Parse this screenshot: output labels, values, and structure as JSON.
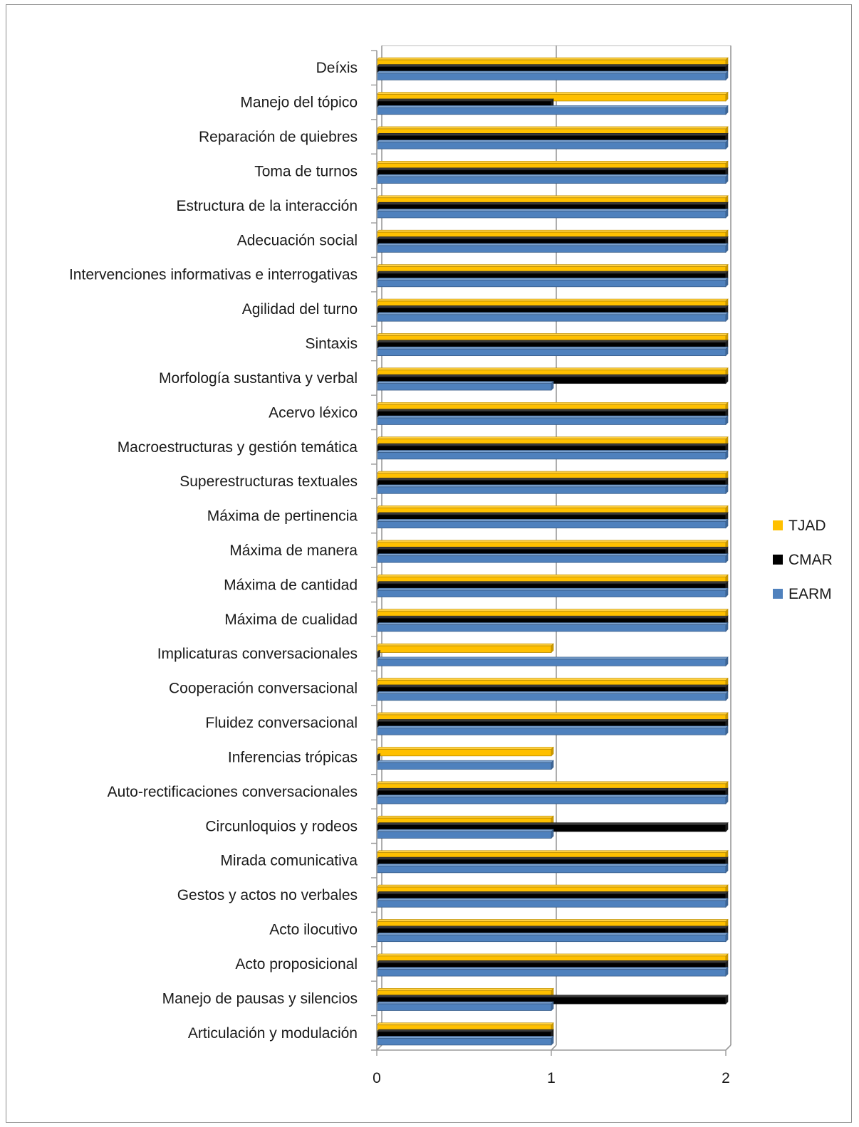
{
  "chart_data": {
    "type": "bar",
    "orientation": "horizontal",
    "title": "",
    "xlabel": "",
    "ylabel": "",
    "xlim": [
      0,
      2
    ],
    "x_ticks": [
      "0",
      "1",
      "2"
    ],
    "grid": "vertical major gridlines",
    "legend_position": "right",
    "categories": [
      "Deíxis",
      "Manejo del tópico",
      "Reparación de quiebres",
      "Toma de turnos",
      "Estructura de la interacción",
      "Adecuación social",
      "Intervenciones informativas e interrogativas",
      "Agilidad del turno",
      "Sintaxis",
      "Morfología sustantiva y verbal",
      "Acervo léxico",
      "Macroestructuras y gestión temática",
      "Superestructuras textuales",
      "Máxima de pertinencia",
      "Máxima de manera",
      "Máxima de cantidad",
      "Máxima de cualidad",
      "Implicaturas conversacionales",
      "Cooperación conversacional",
      "Fluidez conversacional",
      "Inferencias trópicas",
      "Auto-rectificaciones conversacionales",
      "Circunloquios y rodeos",
      "Mirada comunicativa",
      "Gestos y actos no verbales",
      "Acto ilocutivo",
      "Acto proposicional",
      "Manejo de pausas y silencios",
      "Articulación y modulación"
    ],
    "series": [
      {
        "name": "TJAD",
        "color": "#FFC000",
        "values": [
          2,
          2,
          2,
          2,
          2,
          2,
          2,
          2,
          2,
          2,
          2,
          2,
          2,
          2,
          2,
          2,
          2,
          1,
          2,
          2,
          1,
          2,
          1,
          2,
          2,
          2,
          2,
          1,
          1
        ]
      },
      {
        "name": "CMAR",
        "color": "#000000",
        "values": [
          2,
          1,
          2,
          2,
          2,
          2,
          2,
          2,
          2,
          2,
          2,
          2,
          2,
          2,
          2,
          2,
          2,
          0,
          2,
          2,
          0,
          2,
          2,
          2,
          2,
          2,
          2,
          2,
          1
        ]
      },
      {
        "name": "EARM",
        "color": "#4F81BD",
        "values": [
          2,
          2,
          2,
          2,
          2,
          2,
          2,
          2,
          2,
          1,
          2,
          2,
          2,
          2,
          2,
          2,
          2,
          2,
          2,
          2,
          1,
          2,
          1,
          2,
          2,
          2,
          2,
          1,
          1
        ]
      }
    ]
  }
}
